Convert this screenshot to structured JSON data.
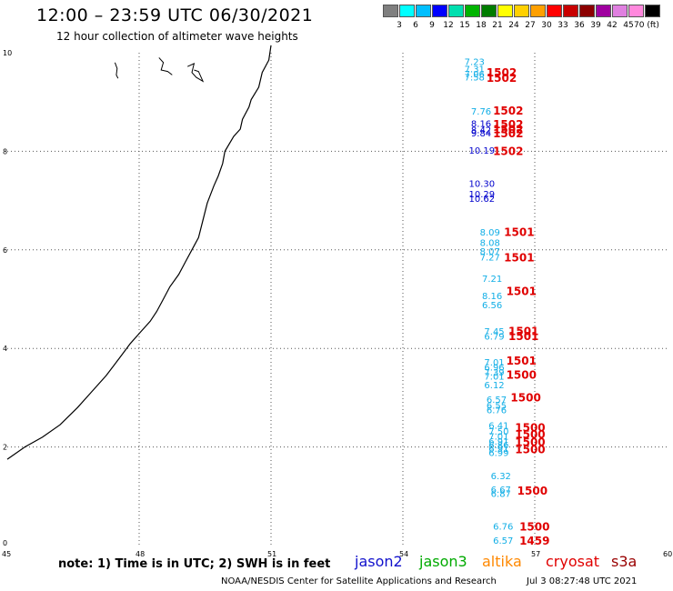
{
  "header": {
    "title": "12:00 – 23:59 UTC 06/30/2021",
    "subtitle": "12 hour collection of altimeter wave heights"
  },
  "color_scale": {
    "colors": [
      "#7f7f7f",
      "#00ffff",
      "#00bfff",
      "#0000ff",
      "#00dfaf",
      "#00b400",
      "#007d00",
      "#ffff00",
      "#ffd000",
      "#ffa000",
      "#ff0000",
      "#c80000",
      "#8c0000",
      "#a000a0",
      "#e080e0",
      "#ff88dd",
      "#000000"
    ],
    "labels": [
      "3",
      "6",
      "9",
      "12",
      "15",
      "18",
      "21",
      "24",
      "27",
      "30",
      "33",
      "36",
      "39",
      "42",
      "45",
      "70 (ft)"
    ]
  },
  "map": {
    "x_ticks": [
      "45",
      "48",
      "51",
      "54",
      "57",
      "60"
    ],
    "y_ticks": [
      "0",
      "2",
      "4",
      "6",
      "8",
      "10"
    ],
    "lon_range": [
      45,
      60
    ],
    "lat_range": [
      0,
      10
    ]
  },
  "observations": [
    {
      "swh": "7.23",
      "color": "#11aee6",
      "lon": 55.4,
      "lat": 9.75
    },
    {
      "swh": "7.31",
      "color": "#11aee6",
      "lon": 55.4,
      "lat": 9.6
    },
    {
      "swh": "7.06",
      "color": "#11aee6",
      "lon": 55.4,
      "lat": 9.5
    },
    {
      "swh": "7.58",
      "color": "#11aee6",
      "lon": 55.4,
      "lat": 9.44
    },
    {
      "swh": "7.76",
      "color": "#11aee6",
      "lon": 55.55,
      "lat": 8.75
    },
    {
      "swh": "8.16",
      "color": "#0000cc",
      "lon": 55.55,
      "lat": 8.5
    },
    {
      "swh": "8.42",
      "color": "#0000cc",
      "lon": 55.55,
      "lat": 8.37
    },
    {
      "swh": "9.84",
      "color": "#0000cc",
      "lon": 55.55,
      "lat": 8.3
    },
    {
      "swh": "10.19",
      "color": "#0000cc",
      "lon": 55.5,
      "lat": 7.95
    },
    {
      "swh": "10.30",
      "color": "#0000cc",
      "lon": 55.5,
      "lat": 7.28
    },
    {
      "swh": "10.29",
      "color": "#0000cc",
      "lon": 55.5,
      "lat": 7.07
    },
    {
      "swh": "10.62",
      "color": "#0000cc",
      "lon": 55.5,
      "lat": 6.97
    },
    {
      "swh": "8.09",
      "color": "#11aee6",
      "lon": 55.75,
      "lat": 6.29
    },
    {
      "swh": "8.08",
      "color": "#11aee6",
      "lon": 55.75,
      "lat": 6.08
    },
    {
      "swh": "8.07",
      "color": "#11aee6",
      "lon": 55.75,
      "lat": 5.9
    },
    {
      "swh": "7.27",
      "color": "#11aee6",
      "lon": 55.75,
      "lat": 5.78
    },
    {
      "swh": "7.21",
      "color": "#11aee6",
      "lon": 55.8,
      "lat": 5.35
    },
    {
      "swh": "8.16",
      "color": "#11aee6",
      "lon": 55.8,
      "lat": 5.0
    },
    {
      "swh": "6.56",
      "color": "#11aee6",
      "lon": 55.8,
      "lat": 4.82
    },
    {
      "swh": "7.45",
      "color": "#11aee6",
      "lon": 55.85,
      "lat": 4.28
    },
    {
      "swh": "6.79",
      "color": "#11aee6",
      "lon": 55.85,
      "lat": 4.18
    },
    {
      "swh": "7.01",
      "color": "#11aee6",
      "lon": 55.85,
      "lat": 3.65
    },
    {
      "swh": "6.96",
      "color": "#11aee6",
      "lon": 55.85,
      "lat": 3.55
    },
    {
      "swh": "7.39",
      "color": "#11aee6",
      "lon": 55.85,
      "lat": 3.45
    },
    {
      "swh": "7.01",
      "color": "#11aee6",
      "lon": 55.85,
      "lat": 3.37
    },
    {
      "swh": "6.12",
      "color": "#11aee6",
      "lon": 55.85,
      "lat": 3.19
    },
    {
      "swh": "6.57",
      "color": "#11aee6",
      "lon": 55.9,
      "lat": 2.9
    },
    {
      "swh": "6.55",
      "color": "#11aee6",
      "lon": 55.9,
      "lat": 2.78
    },
    {
      "swh": "6.76",
      "color": "#11aee6",
      "lon": 55.9,
      "lat": 2.68
    },
    {
      "swh": "6.41",
      "color": "#11aee6",
      "lon": 55.95,
      "lat": 2.37
    },
    {
      "swh": "7.50",
      "color": "#11aee6",
      "lon": 55.95,
      "lat": 2.25
    },
    {
      "swh": "7.01",
      "color": "#11aee6",
      "lon": 55.95,
      "lat": 2.15
    },
    {
      "swh": "6.91",
      "color": "#11aee6",
      "lon": 55.95,
      "lat": 2.05
    },
    {
      "swh": "6.86",
      "color": "#11aee6",
      "lon": 55.95,
      "lat": 1.97
    },
    {
      "swh": "6.91",
      "color": "#11aee6",
      "lon": 55.95,
      "lat": 1.9
    },
    {
      "swh": "6.99",
      "color": "#11aee6",
      "lon": 55.95,
      "lat": 1.82
    },
    {
      "swh": "6.32",
      "color": "#11aee6",
      "lon": 56.0,
      "lat": 1.35
    },
    {
      "swh": "6.67",
      "color": "#11aee6",
      "lon": 56.0,
      "lat": 1.07
    },
    {
      "swh": "6.87",
      "color": "#11aee6",
      "lon": 56.0,
      "lat": 0.99
    },
    {
      "swh": "6.76",
      "color": "#11aee6",
      "lon": 56.05,
      "lat": 0.32
    },
    {
      "swh": "6.57",
      "color": "#11aee6",
      "lon": 56.05,
      "lat": 0.04
    }
  ],
  "times": [
    {
      "text": "1502",
      "lon": 55.9,
      "lat": 9.52
    },
    {
      "text": "1502",
      "lon": 55.9,
      "lat": 9.41
    },
    {
      "text": "1502",
      "lon": 56.05,
      "lat": 8.75
    },
    {
      "text": "1502",
      "lon": 56.05,
      "lat": 8.47
    },
    {
      "text": "1502",
      "lon": 56.05,
      "lat": 8.37
    },
    {
      "text": "1502",
      "lon": 56.05,
      "lat": 8.28
    },
    {
      "text": "1502",
      "lon": 56.05,
      "lat": 7.92
    },
    {
      "text": "1501",
      "lon": 56.3,
      "lat": 6.28
    },
    {
      "text": "1501",
      "lon": 56.3,
      "lat": 5.77
    },
    {
      "text": "1501",
      "lon": 56.35,
      "lat": 5.08
    },
    {
      "text": "1501",
      "lon": 56.4,
      "lat": 4.27
    },
    {
      "text": "1501",
      "lon": 56.4,
      "lat": 4.17
    },
    {
      "text": "1501",
      "lon": 56.35,
      "lat": 3.67
    },
    {
      "text": "1500",
      "lon": 56.35,
      "lat": 3.39
    },
    {
      "text": "1500",
      "lon": 56.45,
      "lat": 2.92
    },
    {
      "text": "1500",
      "lon": 56.55,
      "lat": 2.32
    },
    {
      "text": "1500",
      "lon": 56.55,
      "lat": 2.18
    },
    {
      "text": "1500",
      "lon": 56.55,
      "lat": 2.02
    },
    {
      "text": "1500",
      "lon": 56.55,
      "lat": 1.87
    },
    {
      "text": "1500",
      "lon": 56.6,
      "lat": 1.03
    },
    {
      "text": "1500",
      "lon": 56.65,
      "lat": 0.3
    },
    {
      "text": "1459",
      "lon": 56.65,
      "lat": 0.02
    }
  ],
  "coastline": [
    [
      51.0,
      10.15
    ],
    [
      50.95,
      9.85
    ],
    [
      50.8,
      9.6
    ],
    [
      50.72,
      9.3
    ],
    [
      50.55,
      9.05
    ],
    [
      50.5,
      8.9
    ],
    [
      50.35,
      8.65
    ],
    [
      50.3,
      8.45
    ],
    [
      50.15,
      8.3
    ],
    [
      49.95,
      8.0
    ],
    [
      49.9,
      7.75
    ],
    [
      49.8,
      7.5
    ],
    [
      49.7,
      7.3
    ],
    [
      49.55,
      6.95
    ],
    [
      49.45,
      6.6
    ],
    [
      49.35,
      6.25
    ],
    [
      49.2,
      6.0
    ],
    [
      49.05,
      5.75
    ],
    [
      48.9,
      5.5
    ],
    [
      48.7,
      5.25
    ],
    [
      48.55,
      5.0
    ],
    [
      48.4,
      4.75
    ],
    [
      48.25,
      4.55
    ],
    [
      48.0,
      4.3
    ],
    [
      47.8,
      4.1
    ],
    [
      47.55,
      3.8
    ],
    [
      47.25,
      3.45
    ],
    [
      46.9,
      3.1
    ],
    [
      46.6,
      2.8
    ],
    [
      46.2,
      2.45
    ],
    [
      45.8,
      2.2
    ],
    [
      45.4,
      2.0
    ],
    [
      45.0,
      1.75
    ]
  ],
  "islands": [
    [
      [
        47.45,
        9.8
      ],
      [
        47.5,
        9.68
      ],
      [
        47.48,
        9.55
      ],
      [
        47.52,
        9.48
      ]
    ],
    [
      [
        48.45,
        9.9
      ],
      [
        48.55,
        9.8
      ],
      [
        48.5,
        9.65
      ],
      [
        48.65,
        9.62
      ],
      [
        48.75,
        9.55
      ]
    ],
    [
      [
        49.1,
        9.72
      ],
      [
        49.25,
        9.78
      ],
      [
        49.2,
        9.6
      ],
      [
        49.3,
        9.5
      ],
      [
        49.45,
        9.42
      ],
      [
        49.35,
        9.62
      ],
      [
        49.25,
        9.65
      ]
    ]
  ],
  "legend": {
    "note": "note: 1) Time is in UTC; 2) SWH is in feet",
    "items": [
      {
        "label": "jason2",
        "color": "#1010cc"
      },
      {
        "label": "jason3",
        "color": "#00aa00"
      },
      {
        "label": "altika",
        "color": "#ff8800"
      },
      {
        "label": "cryosat",
        "color": "#e00000"
      },
      {
        "label": "s3a",
        "color": "#990000"
      }
    ]
  },
  "footer": {
    "credit": "NOAA/NESDIS Center for Satellite Applications and Research",
    "generated": "Jul  3 08:27:48 UTC 2021"
  }
}
